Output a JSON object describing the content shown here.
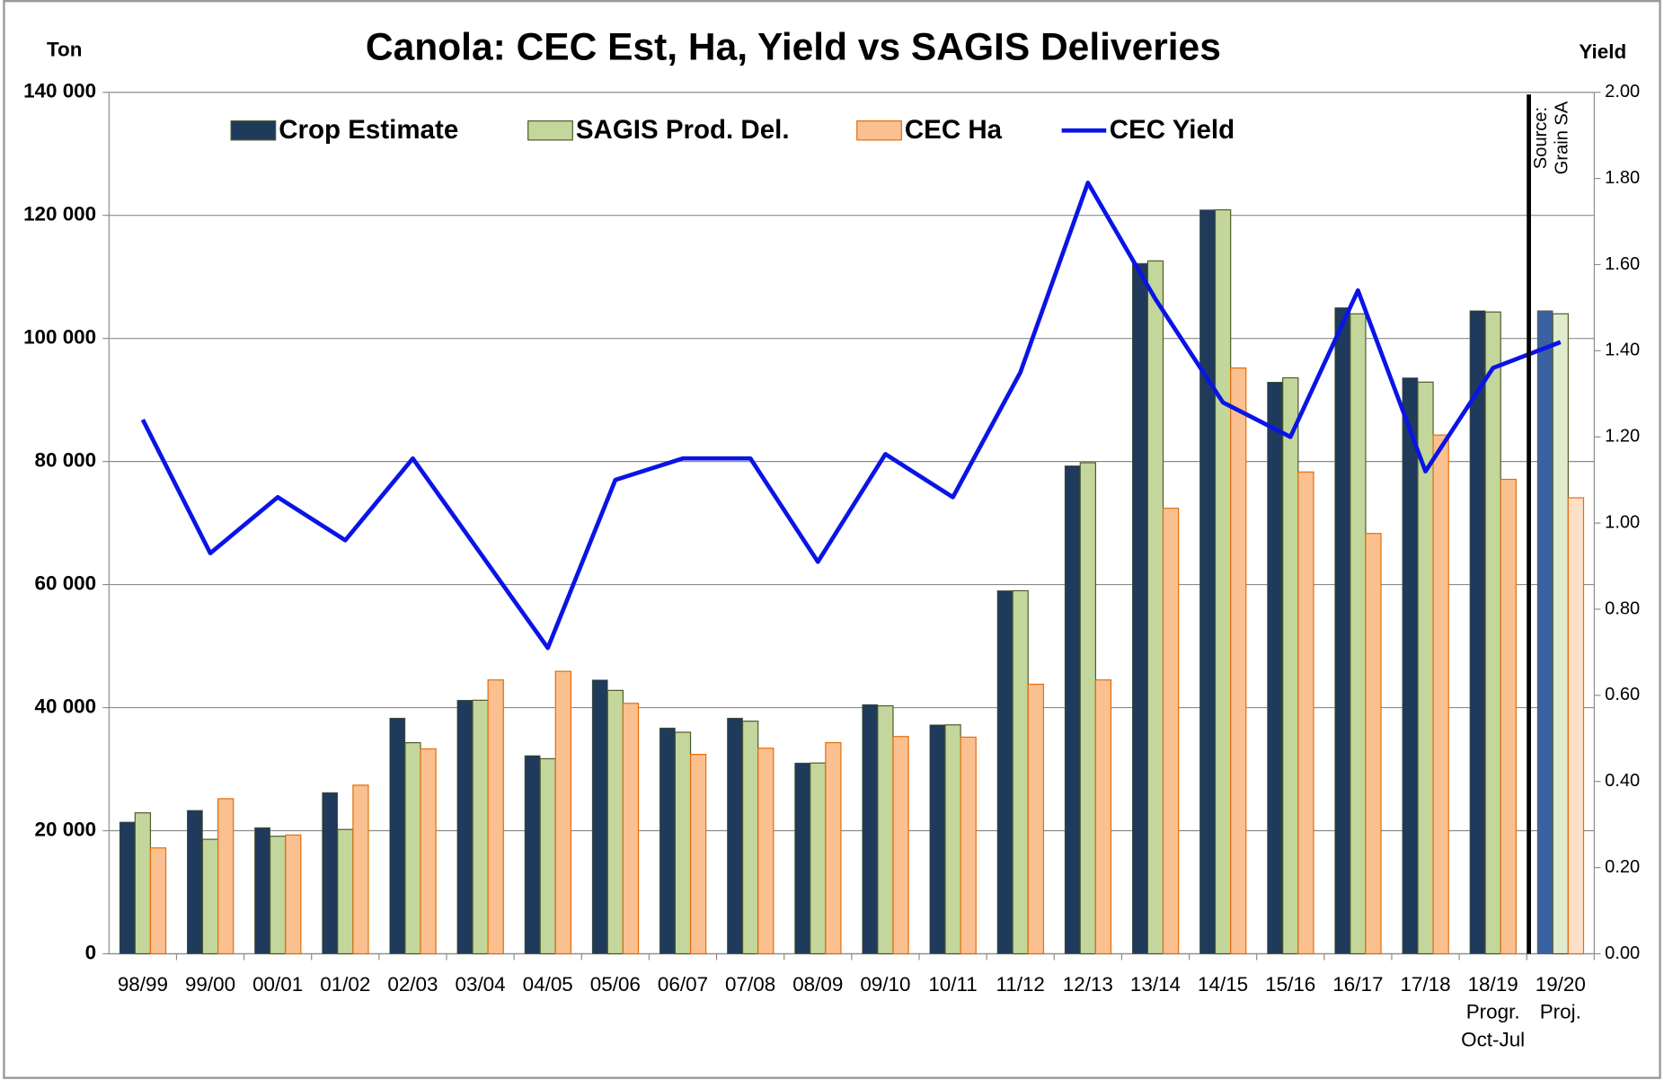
{
  "chart_data": {
    "type": "bar",
    "title": "Canola: CEC  Est, Ha, Yield vs SAGIS Deliveries",
    "y_label": "Ton",
    "y2_label": "Yield",
    "annotation": [
      "Source:",
      "Grain SA"
    ],
    "categories": [
      [
        "98/99"
      ],
      [
        "99/00"
      ],
      [
        "00/01"
      ],
      [
        "01/02"
      ],
      [
        "02/03"
      ],
      [
        "03/04"
      ],
      [
        "04/05"
      ],
      [
        "05/06"
      ],
      [
        "06/07"
      ],
      [
        "07/08"
      ],
      [
        "08/09"
      ],
      [
        "09/10"
      ],
      [
        "10/11"
      ],
      [
        "11/12"
      ],
      [
        "12/13"
      ],
      [
        "13/14"
      ],
      [
        "14/15"
      ],
      [
        "15/16"
      ],
      [
        "16/17"
      ],
      [
        "17/18"
      ],
      [
        "18/19",
        "Progr.",
        "Oct-Jul"
      ],
      [
        "19/20",
        "Proj."
      ]
    ],
    "series": [
      {
        "name": "Crop Estimate",
        "type": "bar",
        "color": "#1f3a5a",
        "projection_color": "#3b62a0",
        "values": [
          21400,
          23300,
          20500,
          26200,
          38300,
          41200,
          32200,
          44500,
          36700,
          38300,
          31000,
          40500,
          37200,
          59000,
          79300,
          112200,
          120900,
          92900,
          105000,
          93600,
          104500,
          104500
        ]
      },
      {
        "name": "SAGIS Prod. Del.",
        "type": "bar",
        "color": "#c3d69b",
        "projection_color": "#e1ebcd",
        "values": [
          22900,
          18600,
          19100,
          20200,
          34300,
          41200,
          31700,
          42800,
          36000,
          37800,
          31000,
          40300,
          37200,
          59000,
          79800,
          112600,
          120900,
          93600,
          104000,
          92900,
          104300,
          104000
        ]
      },
      {
        "name": "CEC Ha",
        "type": "bar",
        "color": "#fac08f",
        "projection_color": "#fde0c7",
        "values": [
          17200,
          25200,
          19300,
          27400,
          33300,
          44500,
          45900,
          40700,
          32400,
          33400,
          34300,
          35300,
          35200,
          43800,
          44500,
          72400,
          95200,
          78300,
          68300,
          84300,
          77100,
          74100
        ]
      },
      {
        "name": "CEC Yield",
        "type": "line",
        "axis": "y2",
        "color": "#0a14e6",
        "values": [
          1.24,
          0.93,
          1.06,
          0.96,
          1.15,
          0.93,
          0.71,
          1.1,
          1.15,
          1.15,
          0.91,
          1.16,
          1.06,
          1.35,
          1.79,
          1.52,
          1.28,
          1.2,
          1.54,
          1.12,
          1.36,
          1.42
        ]
      }
    ],
    "ylim": [
      0,
      140000
    ],
    "yticks": [
      0,
      {
        "value": 20000,
        "label": "20  000"
      },
      {
        "value": 40000,
        "label": "40  000"
      },
      {
        "value": 60000,
        "label": "60  000"
      },
      {
        "value": 80000,
        "label": "80  000"
      },
      {
        "value": 100000,
        "label": "100  000"
      },
      {
        "value": 120000,
        "label": "120  000"
      },
      {
        "value": 140000,
        "label": "140  000"
      }
    ],
    "y2lim": [
      0,
      2
    ],
    "y2ticks": [
      {
        "value": 0,
        "label": "0.00"
      },
      {
        "value": 0.2,
        "label": "0.20"
      },
      {
        "value": 0.4,
        "label": "0.40"
      },
      {
        "value": 0.6,
        "label": "0.60"
      },
      {
        "value": 0.8,
        "label": "0.80"
      },
      {
        "value": 1,
        "label": "1.00"
      },
      {
        "value": 1.2,
        "label": "1.20"
      },
      {
        "value": 1.4,
        "label": "1.40"
      },
      {
        "value": 1.6,
        "label": "1.60"
      },
      {
        "value": 1.8,
        "label": "1.80"
      },
      {
        "value": 2,
        "label": "2.00"
      }
    ],
    "grid": true,
    "legend": "top"
  }
}
